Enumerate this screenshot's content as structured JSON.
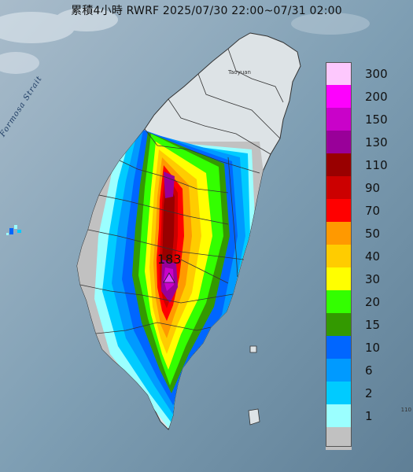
{
  "title": "累積4小時 RWRF 2025/07/30 22:00~07/31 02:00",
  "map": {
    "strait_label": "Formosa Strait",
    "city_label": "Taoyuan",
    "coord_label": "110"
  },
  "peak": {
    "value": "183",
    "marker_color": "#e040fb"
  },
  "legend": [
    {
      "label": "300",
      "color": "#fdc8fd"
    },
    {
      "label": "200",
      "color": "#fd02fd"
    },
    {
      "label": "150",
      "color": "#c902c9"
    },
    {
      "label": "130",
      "color": "#990099"
    },
    {
      "label": "110",
      "color": "#990000"
    },
    {
      "label": "90",
      "color": "#cc0000"
    },
    {
      "label": "70",
      "color": "#ff0000"
    },
    {
      "label": "50",
      "color": "#ff9900"
    },
    {
      "label": "40",
      "color": "#ffcc00"
    },
    {
      "label": "30",
      "color": "#ffff00"
    },
    {
      "label": "20",
      "color": "#33ff00"
    },
    {
      "label": "15",
      "color": "#339900"
    },
    {
      "label": "10",
      "color": "#0066ff"
    },
    {
      "label": "6",
      "color": "#009aff"
    },
    {
      "label": "2",
      "color": "#00cbff"
    },
    {
      "label": "1",
      "color": "#9bffff"
    },
    {
      "label": "",
      "color": "#c1c1c1"
    }
  ]
}
